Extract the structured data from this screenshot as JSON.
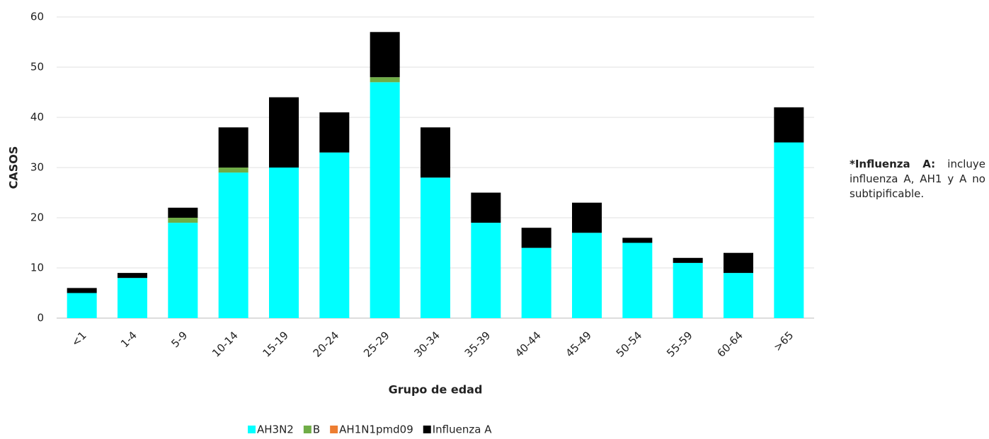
{
  "chart_data": {
    "type": "stacked_bar",
    "categories": [
      "<1",
      "1-4",
      "5-9",
      "10-14",
      "15-19",
      "20-24",
      "25-29",
      "30-34",
      "35-39",
      "40-44",
      "45-49",
      "50-54",
      "55-59",
      "60-64",
      ">65"
    ],
    "series": [
      {
        "name": "AH3N2",
        "color": "#00FFFF",
        "values": [
          5,
          8,
          19,
          29,
          30,
          33,
          47,
          28,
          19,
          14,
          17,
          15,
          11,
          9,
          35
        ]
      },
      {
        "name": "B",
        "color": "#70AD47",
        "values": [
          0,
          0,
          1,
          1,
          0,
          0,
          1,
          0,
          0,
          0,
          0,
          0,
          0,
          0,
          0
        ]
      },
      {
        "name": "AH1N1pmd09",
        "color": "#ED7D31",
        "values": [
          0,
          0,
          0,
          0,
          0,
          0,
          0,
          0,
          0,
          0,
          0,
          0,
          0,
          0,
          0
        ]
      },
      {
        "name": "Influenza A",
        "color": "#000000",
        "values": [
          1,
          1,
          2,
          8,
          14,
          8,
          9,
          10,
          6,
          4,
          6,
          1,
          1,
          4,
          7
        ]
      }
    ],
    "ylim": [
      0,
      60
    ],
    "yticks": [
      0,
      10,
      20,
      30,
      40,
      50,
      60
    ],
    "grid": true,
    "y_label": "CASOS",
    "x_label": "Grupo de edad",
    "annotation_title": "*Influenza A:",
    "annotation_text": "incluye influenza A, AH1 y A no subtipificable.",
    "legend": "bottom"
  }
}
